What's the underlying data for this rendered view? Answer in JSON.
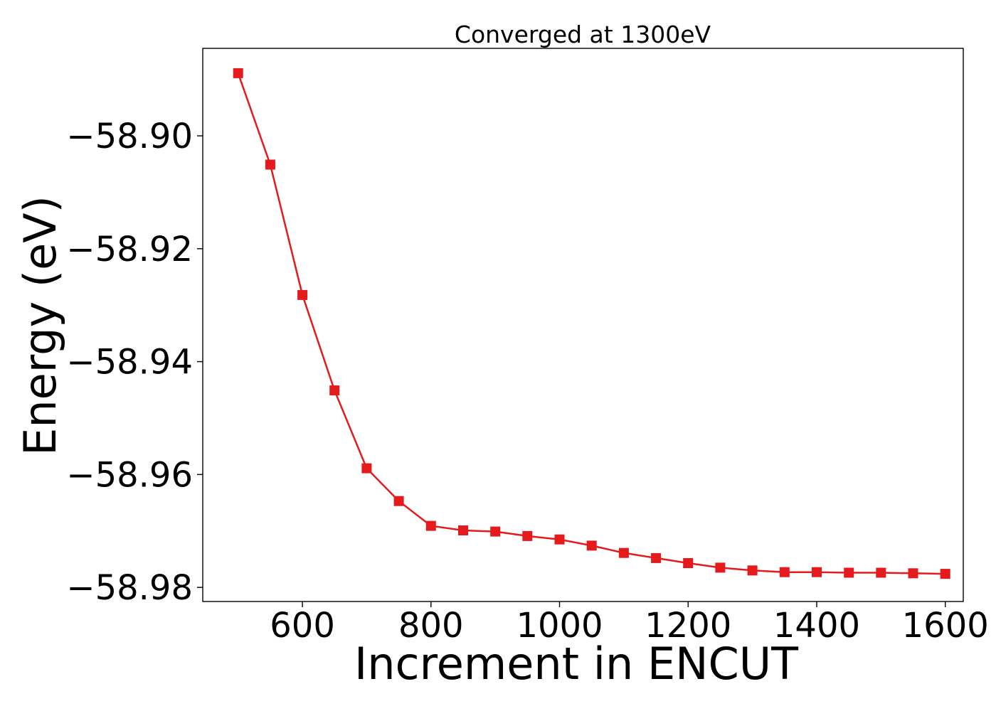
{
  "chart_data": {
    "type": "line",
    "title": "Converged at 1300eV",
    "xlabel": "Increment in ENCUT",
    "ylabel": "Energy (eV)",
    "xlim": [
      445,
      1628
    ],
    "ylim": [
      -58.9825,
      -58.8845
    ],
    "xticks": [
      600,
      800,
      1000,
      1200,
      1400,
      1600
    ],
    "xtick_labels": [
      "600",
      "800",
      "1000",
      "1200",
      "1400",
      "1600"
    ],
    "yticks": [
      -58.9,
      -58.92,
      -58.94,
      -58.96,
      -58.98
    ],
    "ytick_labels": [
      "−58.90",
      "−58.92",
      "−58.94",
      "−58.96",
      "−58.98"
    ],
    "grid": false,
    "series": [
      {
        "color": "#e41a1c",
        "marker": "square",
        "x": [
          500,
          550,
          600,
          650,
          700,
          750,
          800,
          850,
          900,
          950,
          1000,
          1050,
          1100,
          1150,
          1200,
          1250,
          1300,
          1350,
          1400,
          1450,
          1500,
          1550,
          1600
        ],
        "y": [
          -58.8889,
          -58.9051,
          -58.9282,
          -58.9451,
          -58.9589,
          -58.9647,
          -58.9691,
          -58.9699,
          -58.9701,
          -58.9709,
          -58.9715,
          -58.9726,
          -58.9739,
          -58.9748,
          -58.9757,
          -58.9765,
          -58.977,
          -58.9773,
          -58.9773,
          -58.9774,
          -58.9774,
          -58.9775,
          -58.9776
        ]
      }
    ]
  }
}
